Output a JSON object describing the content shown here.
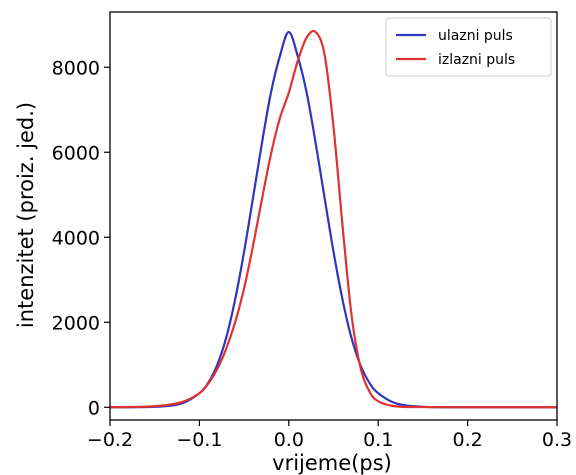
{
  "chart_data": {
    "type": "line",
    "xlabel": "vrijeme(ps)",
    "ylabel": "intenzitet (proiz. jed.)",
    "xlim": [
      -0.2,
      0.3
    ],
    "ylim": [
      -300,
      9300
    ],
    "xticks": [
      -0.2,
      -0.1,
      0.0,
      0.1,
      0.2,
      0.3
    ],
    "xtick_labels": [
      "−0.2",
      "−0.1",
      "0.0",
      "0.1",
      "0.2",
      "0.3"
    ],
    "yticks": [
      0,
      2000,
      4000,
      6000,
      8000
    ],
    "ytick_labels": [
      "0",
      "2000",
      "4000",
      "6000",
      "8000"
    ],
    "grid": false,
    "legend_position": "top-right",
    "series": [
      {
        "name": "ulazni puls",
        "color": "#3333bb",
        "x": [
          -0.2,
          -0.15,
          -0.12,
          -0.1,
          -0.09,
          -0.08,
          -0.07,
          -0.06,
          -0.05,
          -0.04,
          -0.03,
          -0.02,
          -0.01,
          0.0,
          0.01,
          0.02,
          0.03,
          0.04,
          0.05,
          0.06,
          0.07,
          0.08,
          0.09,
          0.1,
          0.12,
          0.15,
          0.2,
          0.3
        ],
        "y": [
          0,
          10,
          90,
          330,
          580,
          1000,
          1640,
          2540,
          3660,
          4930,
          6220,
          7400,
          8260,
          8830,
          8260,
          7400,
          6220,
          4930,
          3660,
          2540,
          1640,
          1000,
          580,
          330,
          90,
          10,
          0,
          0
        ]
      },
      {
        "name": "izlazni puls",
        "color": "#dd3333",
        "x": [
          -0.2,
          -0.15,
          -0.12,
          -0.1,
          -0.09,
          -0.08,
          -0.07,
          -0.06,
          -0.05,
          -0.04,
          -0.03,
          -0.02,
          -0.01,
          0.0,
          0.01,
          0.02,
          0.03,
          0.04,
          0.05,
          0.06,
          0.07,
          0.08,
          0.09,
          0.1,
          0.12,
          0.15,
          0.2,
          0.3
        ],
        "y": [
          0,
          25,
          120,
          330,
          560,
          900,
          1380,
          2000,
          2800,
          3800,
          4900,
          5950,
          6800,
          7400,
          8150,
          8700,
          8830,
          8300,
          6600,
          4300,
          2200,
          950,
          380,
          140,
          20,
          5,
          0,
          0
        ]
      }
    ]
  }
}
